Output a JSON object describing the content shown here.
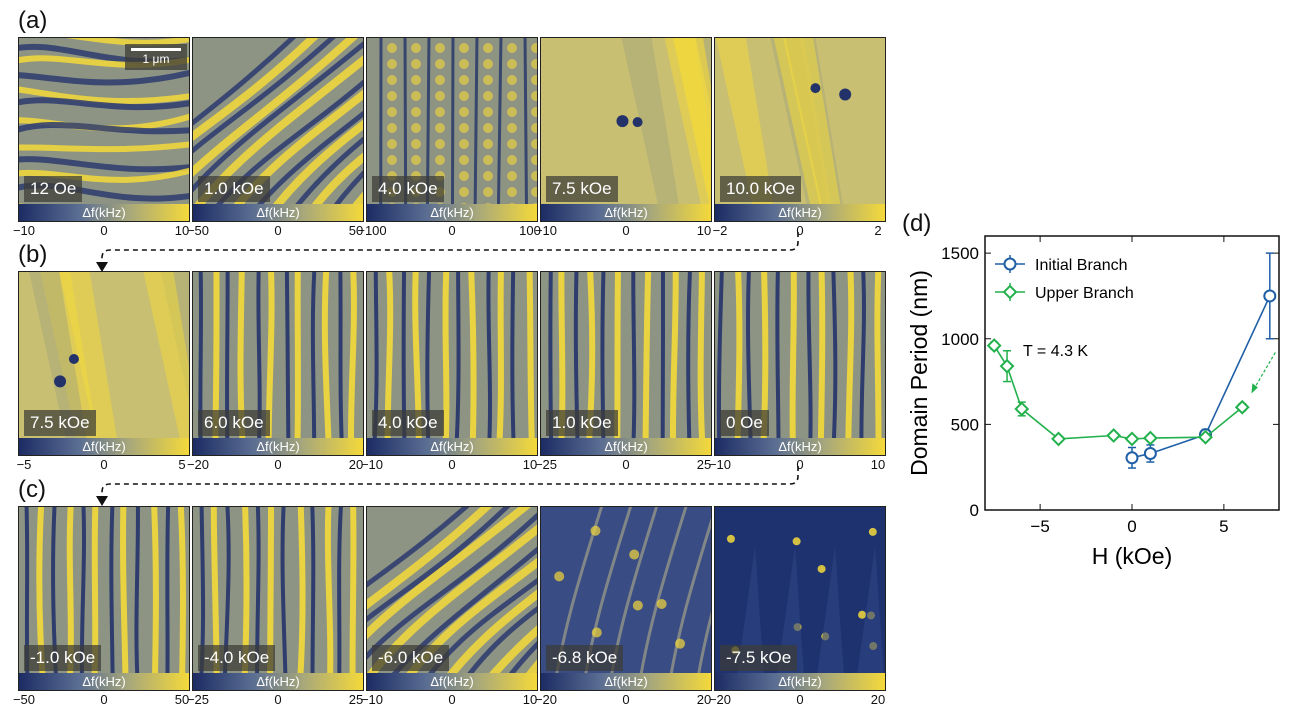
{
  "panels": {
    "a": {
      "letter": "(a)",
      "scalebar": "1 μm",
      "tiles": [
        {
          "field": "12 Oe",
          "ticks": [
            "−10",
            "0",
            "10"
          ]
        },
        {
          "field": "1.0 kOe",
          "ticks": [
            "−50",
            "0",
            "50"
          ]
        },
        {
          "field": "4.0 kOe",
          "ticks": [
            "−100",
            "0",
            "100"
          ]
        },
        {
          "field": "7.5 kOe",
          "ticks": [
            "−10",
            "0",
            "10"
          ]
        },
        {
          "field": "10.0 kOe",
          "ticks": [
            "−2",
            "0",
            "2"
          ]
        }
      ]
    },
    "b": {
      "letter": "(b)",
      "tiles": [
        {
          "field": "7.5 kOe",
          "ticks": [
            "−5",
            "0",
            "5"
          ]
        },
        {
          "field": "6.0 kOe",
          "ticks": [
            "−20",
            "0",
            "20"
          ]
        },
        {
          "field": "4.0 kOe",
          "ticks": [
            "−10",
            "0",
            "10"
          ]
        },
        {
          "field": "1.0 kOe",
          "ticks": [
            "−25",
            "0",
            "25"
          ]
        },
        {
          "field": "0 Oe",
          "ticks": [
            "−10",
            "0",
            "10"
          ]
        }
      ]
    },
    "c": {
      "letter": "(c)",
      "tiles": [
        {
          "field": "-1.0 kOe",
          "ticks": [
            "−50",
            "0",
            "50"
          ]
        },
        {
          "field": "-4.0 kOe",
          "ticks": [
            "−25",
            "0",
            "25"
          ]
        },
        {
          "field": "-6.0 kOe",
          "ticks": [
            "−10",
            "0",
            "10"
          ]
        },
        {
          "field": "-6.8 kOe",
          "ticks": [
            "−20",
            "0",
            "20"
          ]
        },
        {
          "field": "-7.5 kOe",
          "ticks": [
            "−20",
            "0",
            "20"
          ]
        }
      ]
    },
    "d": {
      "letter": "(d)"
    }
  },
  "colorbar_label": "Δf(kHz)",
  "colors": {
    "dark": "#1c2c64",
    "light": "#f4d93a",
    "mid": "#8c9485",
    "initial": "#1f5fa6",
    "upper": "#22b14c"
  },
  "chart_data": {
    "type": "scatter",
    "xlabel": "H (kOe)",
    "ylabel": "Domain Period (nm)",
    "xlim": [
      -8,
      8
    ],
    "ylim": [
      0,
      1600
    ],
    "xticks": [
      "−5",
      "0",
      "5"
    ],
    "yticks": [
      "0",
      "500",
      "1000",
      "1500"
    ],
    "annotation": "T = 4.3 K",
    "legend_position": "top-left",
    "series": [
      {
        "name": "Initial Branch",
        "x": [
          0,
          1,
          4,
          7.5
        ],
        "y": [
          305,
          330,
          440,
          1250
        ],
        "err": [
          60,
          50,
          30,
          250
        ]
      },
      {
        "name": "Upper Branch",
        "x": [
          -7.5,
          -6.8,
          -6,
          -4,
          -1,
          0,
          1,
          4,
          6
        ],
        "y": [
          960,
          840,
          590,
          415,
          435,
          415,
          420,
          425,
          600
        ],
        "err": [
          20,
          90,
          40,
          15,
          15,
          15,
          15,
          15,
          20
        ]
      }
    ]
  }
}
